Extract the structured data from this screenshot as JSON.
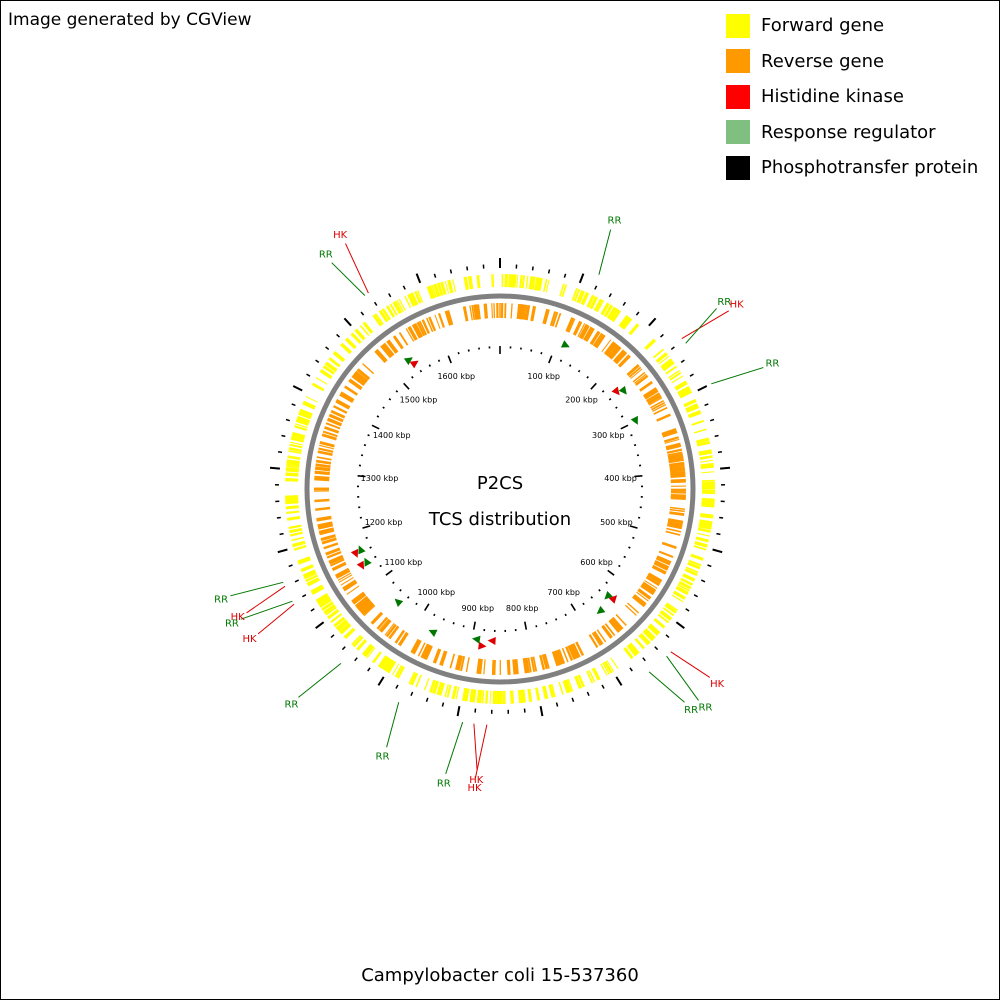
{
  "header": {
    "credit": "Image generated by CGView"
  },
  "legend": [
    {
      "label": "Forward gene",
      "color": "#ffff00"
    },
    {
      "label": "Reverse gene",
      "color": "#ff9900"
    },
    {
      "label": "Histidine kinase",
      "color": "#ff0000"
    },
    {
      "label": "Response regulator",
      "color": "#7fbf7f"
    },
    {
      "label": "Phosphotransfer protein",
      "color": "#000000"
    }
  ],
  "center": {
    "line1": "P2CS",
    "line2": "TCS distribution"
  },
  "caption": "Campylobacter coli 15-537360",
  "genome": {
    "length_kbp": 1700,
    "tick_labels": [
      "100 kbp",
      "200 kbp",
      "300 kbp",
      "400 kbp",
      "500 kbp",
      "600 kbp",
      "700 kbp",
      "800 kbp",
      "900 kbp",
      "1000 kbp",
      "1100 kbp",
      "1200 kbp",
      "1300 kbp",
      "1400 kbp",
      "1500 kbp",
      "1600 kbp"
    ]
  },
  "features": [
    {
      "label": "RR",
      "position_kbp": 117,
      "color": "#007700"
    },
    {
      "label": "HK",
      "position_kbp": 238,
      "color": "#dd0000"
    },
    {
      "label": "RR",
      "position_kbp": 245,
      "color": "#007700"
    },
    {
      "label": "RR",
      "position_kbp": 300,
      "color": "#007700"
    },
    {
      "label": "HK",
      "position_kbp": 631,
      "color": "#dd0000"
    },
    {
      "label": "RR",
      "position_kbp": 638,
      "color": "#007700"
    },
    {
      "label": "RR",
      "position_kbp": 665,
      "color": "#007700"
    },
    {
      "label": "HK",
      "position_kbp": 865,
      "color": "#dd0000"
    },
    {
      "label": "HK",
      "position_kbp": 880,
      "color": "#dd0000"
    },
    {
      "label": "RR",
      "position_kbp": 893,
      "color": "#007700"
    },
    {
      "label": "RR",
      "position_kbp": 970,
      "color": "#007700"
    },
    {
      "label": "RR",
      "position_kbp": 1050,
      "color": "#007700"
    },
    {
      "label": "HK",
      "position_kbp": 1137,
      "color": "#dd0000"
    },
    {
      "label": "RR",
      "position_kbp": 1141,
      "color": "#007700"
    },
    {
      "label": "HK",
      "position_kbp": 1160,
      "color": "#dd0000"
    },
    {
      "label": "RR",
      "position_kbp": 1165,
      "color": "#007700"
    },
    {
      "label": "RR",
      "position_kbp": 1535,
      "color": "#007700"
    },
    {
      "label": "HK",
      "position_kbp": 1540,
      "color": "#dd0000"
    }
  ]
}
